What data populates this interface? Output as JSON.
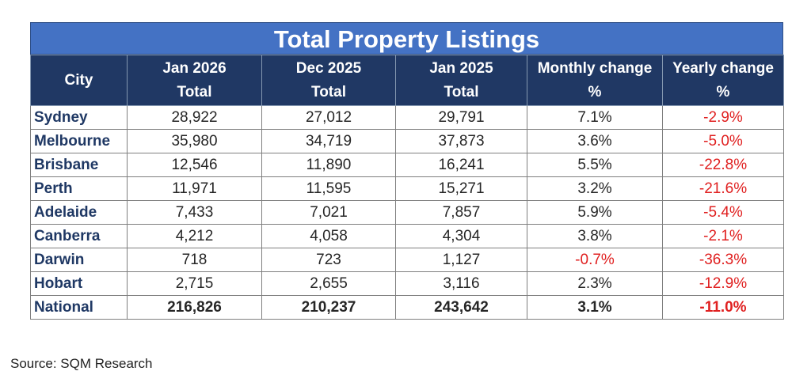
{
  "title": "Total Property Listings",
  "headers": [
    {
      "line1": "City",
      "line2": ""
    },
    {
      "line1": "Jan 2026",
      "line2": "Total"
    },
    {
      "line1": "Dec 2025",
      "line2": "Total"
    },
    {
      "line1": "Jan 2025",
      "line2": "Total"
    },
    {
      "line1": "Monthly change",
      "line2": "%"
    },
    {
      "line1": "Yearly change",
      "line2": "%"
    }
  ],
  "rows": [
    {
      "city": "Sydney",
      "jan2026": "28,922",
      "dec2025": "27,012",
      "jan2025": "29,791",
      "monthly": "7.1%",
      "yearly": "-2.9%"
    },
    {
      "city": "Melbourne",
      "jan2026": "35,980",
      "dec2025": "34,719",
      "jan2025": "37,873",
      "monthly": "3.6%",
      "yearly": "-5.0%"
    },
    {
      "city": "Brisbane",
      "jan2026": "12,546",
      "dec2025": "11,890",
      "jan2025": "16,241",
      "monthly": "5.5%",
      "yearly": "-22.8%"
    },
    {
      "city": "Perth",
      "jan2026": "11,971",
      "dec2025": "11,595",
      "jan2025": "15,271",
      "monthly": "3.2%",
      "yearly": "-21.6%"
    },
    {
      "city": "Adelaide",
      "jan2026": "7,433",
      "dec2025": "7,021",
      "jan2025": "7,857",
      "monthly": "5.9%",
      "yearly": "-5.4%"
    },
    {
      "city": "Canberra",
      "jan2026": "4,212",
      "dec2025": "4,058",
      "jan2025": "4,304",
      "monthly": "3.8%",
      "yearly": "-2.1%"
    },
    {
      "city": "Darwin",
      "jan2026": "718",
      "dec2025": "723",
      "jan2025": "1,127",
      "monthly": "-0.7%",
      "yearly": "-36.3%"
    },
    {
      "city": "Hobart",
      "jan2026": "2,715",
      "dec2025": "2,655",
      "jan2025": "3,116",
      "monthly": "2.3%",
      "yearly": "-12.9%"
    },
    {
      "city": "National",
      "jan2026": "216,826",
      "dec2025": "210,237",
      "jan2025": "243,642",
      "monthly": "3.1%",
      "yearly": "-11.0%"
    }
  ],
  "source": "Source: SQM Research",
  "colors": {
    "title_bg": "#4472c4",
    "header_bg": "#203864",
    "negative": "#e02020"
  }
}
